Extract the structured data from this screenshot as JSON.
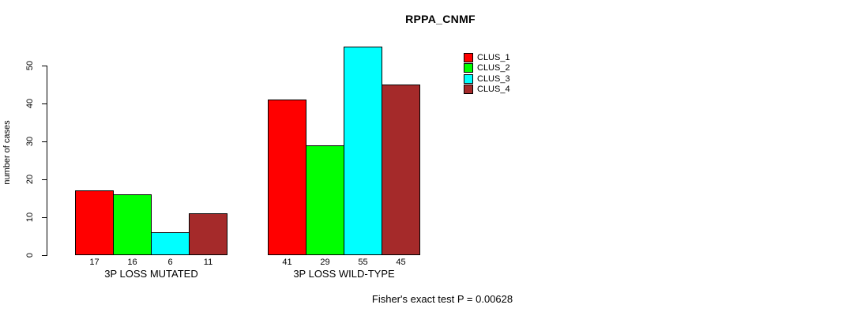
{
  "chart_data": {
    "type": "bar",
    "title": "RPPA_CNMF",
    "ylabel": "number of cases",
    "xlabel": "",
    "categories": [
      "3P LOSS MUTATED",
      "3P LOSS WILD-TYPE"
    ],
    "series": [
      {
        "name": "CLUS_1",
        "color": "#ff0000",
        "values": [
          17,
          41
        ]
      },
      {
        "name": "CLUS_2",
        "color": "#00ff00",
        "values": [
          16,
          29
        ]
      },
      {
        "name": "CLUS_3",
        "color": "#00ffff",
        "values": [
          6,
          55
        ]
      },
      {
        "name": "CLUS_4",
        "color": "#a52a2a",
        "values": [
          11,
          45
        ]
      }
    ],
    "yticks": [
      0,
      10,
      20,
      30,
      40,
      50
    ],
    "ylim": [
      0,
      55
    ],
    "grid": false,
    "legend_position": "right",
    "bar_value_labels": true,
    "annotation": "Fisher's exact test P = 0.00628"
  }
}
